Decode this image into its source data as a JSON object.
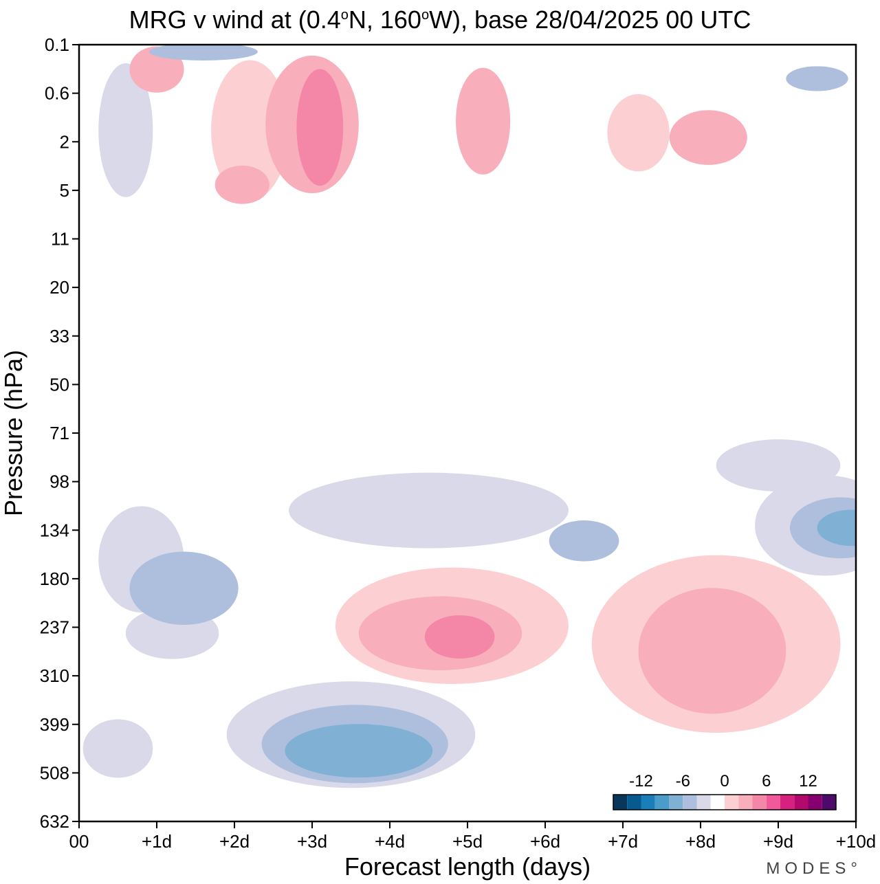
{
  "chart_data": {
    "type": "heatmap",
    "title": {
      "prefix": "MRG v wind at (0.4",
      "lat_deg": "o",
      "lat_suffix": "N, 160",
      "lon_deg": "o",
      "rest": "W),  base 28/04/2025  00 UTC"
    },
    "xlabel": "Forecast length (days)",
    "ylabel": "Pressure (hPa)",
    "x_ticks": [
      "00",
      "+1d",
      "+2d",
      "+3d",
      "+4d",
      "+5d",
      "+6d",
      "+7d",
      "+8d",
      "+9d",
      "+10d"
    ],
    "y_ticks": [
      "0.1",
      "0.6",
      "2",
      "5",
      "11",
      "20",
      "33",
      "50",
      "71",
      "98",
      "134",
      "180",
      "237",
      "310",
      "399",
      "508",
      "632"
    ],
    "xlim": [
      0,
      10
    ],
    "colorbar": {
      "tick_labels": [
        "-12",
        "-6",
        "0",
        "6",
        "12"
      ],
      "levels": [
        -16,
        -14,
        -12,
        -10,
        -8,
        -6,
        -4,
        -2,
        2,
        4,
        6,
        8,
        10,
        12,
        14,
        16
      ],
      "colors": [
        "#08375a",
        "#075a8f",
        "#1a7fb8",
        "#4a9cc9",
        "#80b0d4",
        "#aebfdd",
        "#d9d9ea",
        "#ffffff",
        "#fcd0d2",
        "#f8aebb",
        "#f486a8",
        "#f05a9a",
        "#d6217f",
        "#b3096c",
        "#87006f",
        "#4d0a6a"
      ]
    },
    "features": [
      {
        "center": [
          0.8,
          160
        ],
        "size": [
          0.55,
          50
        ],
        "level": 1,
        "sign": -1
      },
      {
        "center": [
          1.2,
          245
        ],
        "size": [
          0.6,
          35
        ],
        "level": 1,
        "sign": -1
      },
      {
        "center": [
          1.35,
          190
        ],
        "size": [
          0.7,
          40
        ],
        "level": 2,
        "sign": -1
      },
      {
        "center": [
          3.5,
          420
        ],
        "size": [
          1.6,
          110
        ],
        "level": 1,
        "sign": -1
      },
      {
        "center": [
          3.55,
          440
        ],
        "size": [
          1.2,
          85
        ],
        "level": 2,
        "sign": -1
      },
      {
        "center": [
          3.6,
          455
        ],
        "size": [
          0.95,
          60
        ],
        "level": 3,
        "sign": -1
      },
      {
        "center": [
          0.5,
          450
        ],
        "size": [
          0.45,
          65
        ],
        "level": 1,
        "sign": -1
      },
      {
        "center": [
          4.8,
          235
        ],
        "size": [
          1.5,
          75
        ],
        "level": 1,
        "sign": 1
      },
      {
        "center": [
          4.65,
          245
        ],
        "size": [
          1.05,
          50
        ],
        "level": 2,
        "sign": 1
      },
      {
        "center": [
          4.9,
          250
        ],
        "size": [
          0.45,
          30
        ],
        "level": 3,
        "sign": 1
      },
      {
        "center": [
          8.2,
          260
        ],
        "size": [
          1.6,
          120
        ],
        "level": 1,
        "sign": 1
      },
      {
        "center": [
          8.15,
          270
        ],
        "size": [
          0.95,
          90
        ],
        "level": 2,
        "sign": 1
      },
      {
        "center": [
          9.6,
          130
        ],
        "size": [
          0.9,
          40
        ],
        "level": 1,
        "sign": -1
      },
      {
        "center": [
          9.8,
          132
        ],
        "size": [
          0.65,
          25
        ],
        "level": 2,
        "sign": -1
      },
      {
        "center": [
          9.95,
          132
        ],
        "size": [
          0.45,
          15
        ],
        "level": 3,
        "sign": -1
      },
      {
        "center": [
          4.5,
          118
        ],
        "size": [
          1.8,
          28
        ],
        "level": 1,
        "sign": -1
      },
      {
        "center": [
          6.5,
          143
        ],
        "size": [
          0.45,
          18
        ],
        "level": 2,
        "sign": -1
      },
      {
        "center": [
          9.0,
          88
        ],
        "size": [
          0.8,
          15
        ],
        "level": 1,
        "sign": -1
      },
      {
        "center": [
          2.2,
          1.5
        ],
        "size": [
          0.5,
          3
        ],
        "level": 1,
        "sign": 1
      },
      {
        "center": [
          3.0,
          1.3
        ],
        "size": [
          0.6,
          3
        ],
        "level": 2,
        "sign": 1
      },
      {
        "center": [
          3.1,
          1.4
        ],
        "size": [
          0.3,
          1.5
        ],
        "level": 3,
        "sign": 1
      },
      {
        "center": [
          2.1,
          4.5
        ],
        "size": [
          0.35,
          1.5
        ],
        "level": 2,
        "sign": 1
      },
      {
        "center": [
          8.1,
          1.8
        ],
        "size": [
          0.5,
          1.0
        ],
        "level": 2,
        "sign": 1
      },
      {
        "center": [
          7.2,
          1.6
        ],
        "size": [
          0.4,
          1.2
        ],
        "level": 1,
        "sign": 1
      },
      {
        "center": [
          5.2,
          1.2
        ],
        "size": [
          0.35,
          1.2
        ],
        "level": 2,
        "sign": 1
      },
      {
        "center": [
          1.0,
          0.25
        ],
        "size": [
          0.35,
          0.3
        ],
        "level": 2,
        "sign": 1
      },
      {
        "center": [
          1.6,
          0.13
        ],
        "size": [
          0.7,
          0.06
        ],
        "level": 2,
        "sign": -1
      },
      {
        "center": [
          9.5,
          0.35
        ],
        "size": [
          0.4,
          0.15
        ],
        "level": 2,
        "sign": -1
      },
      {
        "center": [
          0.6,
          1.5
        ],
        "size": [
          0.35,
          2.5
        ],
        "level": 1,
        "sign": -1
      }
    ]
  }
}
